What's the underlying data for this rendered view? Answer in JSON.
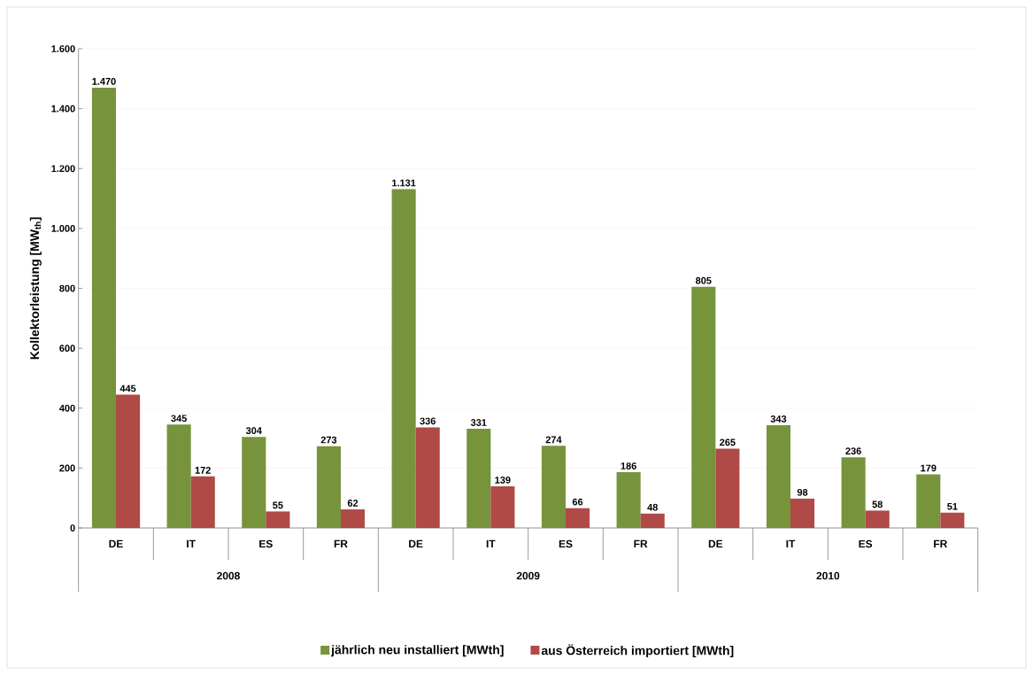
{
  "chart_data": {
    "type": "bar",
    "ylabel": "Kollektorleistung [MW$_{th}$]",
    "categories": [
      "DE",
      "IT",
      "ES",
      "FR",
      "DE",
      "IT",
      "ES",
      "FR",
      "DE",
      "IT",
      "ES",
      "FR"
    ],
    "annotations": [
      "2008",
      "2009",
      "2010"
    ],
    "series": [
      {
        "name": "jährlich neu installiert [MWth]",
        "color": "#77933c",
        "values": [
          1470,
          345,
          304,
          273,
          1131,
          331,
          274,
          186,
          805,
          343,
          236,
          179
        ],
        "value_labels": [
          "1.470",
          "345",
          "304",
          "273",
          "1.131",
          "331",
          "274",
          "186",
          "805",
          "343",
          "236",
          "179"
        ]
      },
      {
        "name": "aus Österreich importiert [MWth]",
        "color": "#b04a47",
        "values": [
          445,
          172,
          55,
          62,
          336,
          139,
          66,
          48,
          265,
          98,
          58,
          51
        ],
        "value_labels": [
          "445",
          "172",
          "55",
          "62",
          "336",
          "139",
          "66",
          "48",
          "265",
          "98",
          "58",
          "51"
        ]
      }
    ],
    "ylim": [
      0,
      1600
    ],
    "yticks": [
      0,
      200,
      400,
      600,
      800,
      {
        "value": 1000,
        "label": "1.000"
      },
      {
        "value": 1200,
        "label": "1.200"
      },
      {
        "value": 1400,
        "label": "1.400"
      },
      {
        "value": 1600,
        "label": "1.600"
      }
    ],
    "grid": "y",
    "legend": "bottom"
  }
}
